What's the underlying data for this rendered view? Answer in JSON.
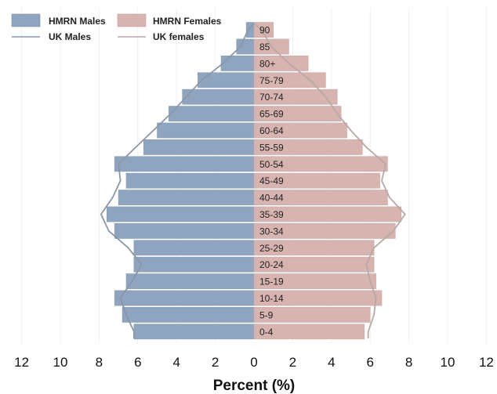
{
  "chart_data": {
    "type": "bar",
    "orientation": "horizontal-pyramid",
    "categories": [
      "0-4",
      "5-9",
      "10-14",
      "15-19",
      "20-24",
      "25-29",
      "30-34",
      "35-39",
      "40-44",
      "45-49",
      "50-54",
      "55-59",
      "60-64",
      "65-69",
      "70-74",
      "75-79",
      "80+",
      "85",
      "90"
    ],
    "series": [
      {
        "name": "HMRN Males",
        "kind": "bar",
        "side": "left",
        "color": "#8fa5bf",
        "values": [
          6.2,
          6.8,
          7.2,
          6.6,
          6.2,
          6.2,
          7.2,
          7.6,
          7.0,
          6.6,
          7.2,
          5.7,
          5.0,
          4.4,
          3.7,
          2.9,
          1.7,
          0.9,
          0.4
        ]
      },
      {
        "name": "HMRN Females",
        "kind": "bar",
        "side": "right",
        "color": "#d7b4b0",
        "values": [
          5.7,
          6.0,
          6.6,
          6.3,
          6.2,
          6.2,
          7.3,
          7.6,
          6.9,
          6.5,
          6.9,
          5.6,
          4.8,
          4.5,
          4.3,
          3.7,
          2.8,
          1.8,
          1.0
        ]
      },
      {
        "name": "UK Males",
        "kind": "line",
        "side": "left",
        "color": "#8a96a6",
        "values": [
          6.2,
          6.6,
          6.9,
          6.3,
          5.8,
          6.5,
          7.5,
          7.9,
          7.3,
          6.9,
          7.0,
          6.1,
          5.2,
          4.3,
          3.5,
          2.7,
          1.6,
          0.7,
          0.3
        ]
      },
      {
        "name": "UK females",
        "kind": "line",
        "side": "right",
        "color": "#b9a8a6",
        "values": [
          5.9,
          6.2,
          6.3,
          6.0,
          5.8,
          6.2,
          7.2,
          7.8,
          7.0,
          6.6,
          6.8,
          5.8,
          5.0,
          4.3,
          3.7,
          2.9,
          1.8,
          0.9,
          0.4
        ]
      }
    ],
    "xticks": [
      "12",
      "10",
      "8",
      "6",
      "4",
      "2",
      "0",
      "2",
      "4",
      "6",
      "8",
      "10",
      "12"
    ],
    "xlim": [
      -12,
      12
    ],
    "xlabel": "Percent (%)",
    "legend": {
      "placement": "top-left"
    }
  }
}
